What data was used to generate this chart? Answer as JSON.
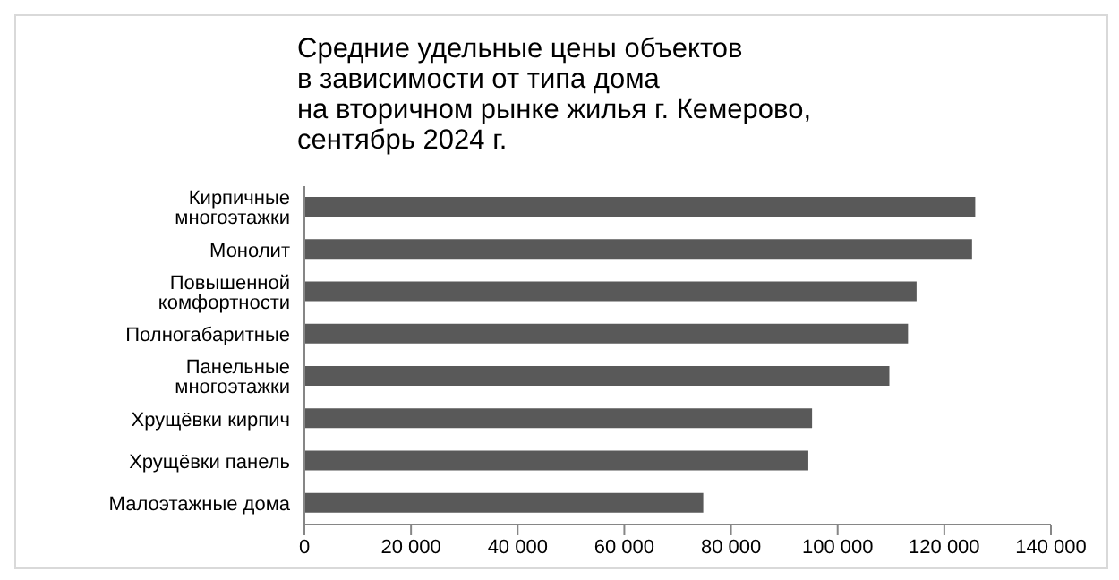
{
  "chart_data": {
    "type": "bar",
    "orientation": "horizontal",
    "title": "Средние удельные цены объектов\nв зависимости от типа дома\nна вторичном рынке жилья г. Кемерово,\nсентябрь 2024 г.",
    "categories": [
      "Кирпичные многоэтажки",
      "Монолит",
      "Повышенной комфортности",
      "Полногабаритные",
      "Панельные многоэтажки",
      "Хрущёвки кирпич",
      "Хрущёвки панель",
      "Малоэтажные дома"
    ],
    "values": [
      125800,
      125200,
      114800,
      113200,
      109700,
      95200,
      94500,
      74800
    ],
    "color": "#595959",
    "xlim": [
      0,
      140000
    ],
    "xticks": [
      {
        "value": 0,
        "label": "0"
      },
      {
        "value": 20000,
        "label": "20 000"
      },
      {
        "value": 40000,
        "label": "40 000"
      },
      {
        "value": 60000,
        "label": "60 000"
      },
      {
        "value": 80000,
        "label": "80 000"
      },
      {
        "value": 100000,
        "label": "100 000"
      },
      {
        "value": 120000,
        "label": "120 000"
      },
      {
        "value": 140000,
        "label": "140 000"
      }
    ],
    "grid": false,
    "legend": false
  }
}
